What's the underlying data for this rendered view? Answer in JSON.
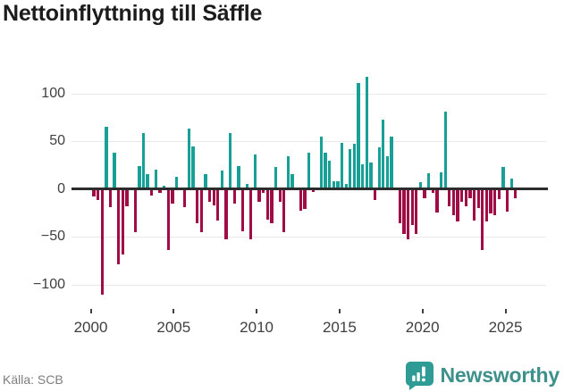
{
  "title": "Nettoinflyttning till Säffle",
  "footer": {
    "source": "Källa: SCB",
    "brand": "Newsworthy"
  },
  "colors": {
    "positive": "#18a096",
    "negative": "#a00d46",
    "grid": "#e8e8e8",
    "zero_line": "#2c2c2c",
    "axis_text": "#3f3f3f",
    "source_text": "#7d7d7d",
    "brand_icon": "#2e9c94",
    "brand_text": "#3e908b"
  },
  "chart_data": {
    "type": "bar",
    "title": "Nettoinflyttning till Säffle",
    "xlabel": "",
    "ylabel": "",
    "frequency": "quarterly",
    "start_period": "2000Q1",
    "end_period": "2025Q3",
    "grid": true,
    "legend": false,
    "ylim": [
      -120,
      125
    ],
    "y_ticks": [
      100,
      50,
      0,
      -50,
      -100
    ],
    "y_tick_labels": [
      "100",
      "50",
      "0",
      "−50",
      "−100"
    ],
    "x_tick_labels": [
      "2000",
      "2005",
      "2010",
      "2015",
      "2020",
      "2025"
    ],
    "series": [
      {
        "name": "Nettoinflyttning",
        "values": [
          -8,
          -12,
          -111,
          65,
          -19,
          38,
          -79,
          -69,
          -18,
          0,
          -45,
          24,
          58,
          15,
          -7,
          20,
          -4,
          3,
          -64,
          -15,
          13,
          0,
          -19,
          63,
          44,
          -36,
          -45,
          15,
          -14,
          -17,
          -33,
          19,
          -53,
          58,
          -15,
          24,
          -44,
          5,
          -53,
          36,
          -14,
          -4,
          -32,
          -36,
          23,
          -14,
          -45,
          34,
          15,
          0,
          -23,
          -21,
          38,
          -3,
          0,
          55,
          38,
          29,
          8,
          8,
          48,
          5,
          42,
          47,
          111,
          26,
          117,
          28,
          -12,
          43,
          72,
          34,
          55,
          0,
          -36,
          -47,
          -53,
          -38,
          -47,
          7,
          -10,
          16,
          -4,
          -25,
          17,
          81,
          -18,
          -28,
          -34,
          -14,
          -18,
          -10,
          -33,
          -20,
          -64,
          -34,
          -26,
          -28,
          -11,
          23,
          -24,
          11,
          -10
        ]
      }
    ]
  }
}
